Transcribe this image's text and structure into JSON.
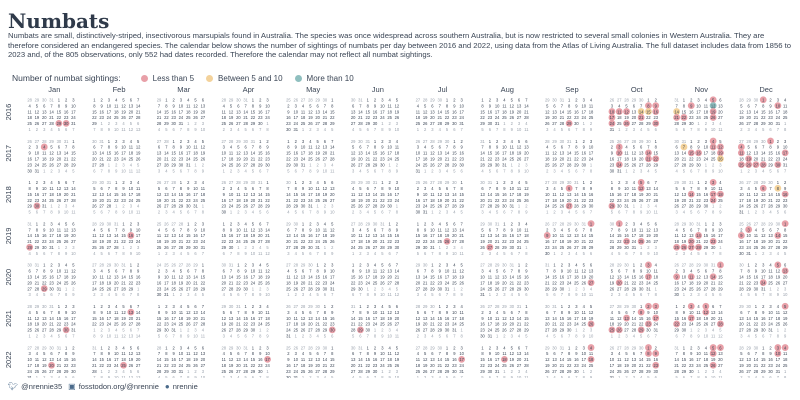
{
  "title": "Numbats",
  "description": "Numbats are small, distinctively-striped, insectivorous marsupials found in Australia. The species was once widespread across southern Australia, but is now restricted to several small colonies in Western Australia. They are therefore considered an endangered species. The calendar below shows the number of sightings of numbats per day between 2016 and 2022, using data from the Atlas of Living Australia. The full dataset includes data from 1856 to 2023 and, of the 805 observations, only 552 had dates recorded. Therefore the calendar may not reflect all numbat sightings.",
  "legend": {
    "title": "Number of numbat sightings:",
    "items": [
      {
        "label": "Less than 5",
        "color": "#e8a0a8"
      },
      {
        "label": "Between 5 and 10",
        "color": "#f3d29b"
      },
      {
        "label": "More than 10",
        "color": "#8fbfbf"
      }
    ]
  },
  "footer": {
    "twitter_icon": "twitter-icon",
    "twitter": "@nrennie35",
    "mastodon_icon": "mastodon-icon",
    "mastodon": "fosstodon.org/@nrennie",
    "github_icon": "github-icon",
    "github": "nrennie"
  },
  "chart_data": {
    "type": "heatmap",
    "years": [
      "2016",
      "2017",
      "2018",
      "2019",
      "2020",
      "2021",
      "2022"
    ],
    "months": [
      "Jan",
      "Feb",
      "Mar",
      "Apr",
      "May",
      "Jun",
      "Jul",
      "Aug",
      "Sep",
      "Oct",
      "Nov",
      "Dec"
    ],
    "categories": [
      "Less than 5",
      "Between 5 and 10",
      "More than 10"
    ],
    "colors": {
      "low": "#e8a0a8",
      "mid": "#f3d29b",
      "high": "#8fbfbf"
    },
    "highlighted_days": [
      {
        "date": "2016-01-29",
        "level": "low"
      },
      {
        "date": "2016-01-30",
        "level": "low"
      },
      {
        "date": "2016-09-29",
        "level": "low"
      },
      {
        "date": "2016-10-08",
        "level": "low"
      },
      {
        "date": "2016-10-09",
        "level": "low"
      },
      {
        "date": "2016-10-10",
        "level": "low"
      },
      {
        "date": "2016-10-11",
        "level": "low"
      },
      {
        "date": "2016-10-12",
        "level": "low"
      },
      {
        "date": "2016-10-14",
        "level": "mid"
      },
      {
        "date": "2016-10-15",
        "level": "mid"
      },
      {
        "date": "2016-10-16",
        "level": "low"
      },
      {
        "date": "2016-10-17",
        "level": "low"
      },
      {
        "date": "2016-10-21",
        "level": "low"
      },
      {
        "date": "2016-10-24",
        "level": "low"
      },
      {
        "date": "2016-10-26",
        "level": "low"
      },
      {
        "date": "2016-10-30",
        "level": "low"
      },
      {
        "date": "2016-11-05",
        "level": "low"
      },
      {
        "date": "2016-11-09",
        "level": "low"
      },
      {
        "date": "2016-11-12",
        "level": "high"
      },
      {
        "date": "2016-11-14",
        "level": "mid"
      },
      {
        "date": "2016-11-19",
        "level": "low"
      },
      {
        "date": "2016-11-21",
        "level": "low"
      },
      {
        "date": "2016-11-22",
        "level": "low"
      },
      {
        "date": "2016-11-26",
        "level": "low"
      },
      {
        "date": "2016-12-01",
        "level": "low"
      },
      {
        "date": "2016-12-10",
        "level": "low"
      },
      {
        "date": "2017-01-04",
        "level": "low"
      },
      {
        "date": "2017-10-03",
        "level": "low"
      },
      {
        "date": "2017-10-10",
        "level": "low"
      },
      {
        "date": "2017-10-14",
        "level": "low"
      },
      {
        "date": "2017-10-21",
        "level": "low"
      },
      {
        "date": "2017-10-22",
        "level": "low"
      },
      {
        "date": "2017-10-24",
        "level": "low"
      },
      {
        "date": "2017-11-04",
        "level": "low"
      },
      {
        "date": "2017-11-07",
        "level": "mid"
      },
      {
        "date": "2017-11-11",
        "level": "low"
      },
      {
        "date": "2017-11-12",
        "level": "low"
      },
      {
        "date": "2017-11-15",
        "level": "low"
      },
      {
        "date": "2017-11-16",
        "level": "low"
      },
      {
        "date": "2017-11-19",
        "level": "low"
      },
      {
        "date": "2017-11-26",
        "level": "mid"
      },
      {
        "date": "2017-12-01",
        "level": "low"
      },
      {
        "date": "2017-12-04",
        "level": "low"
      },
      {
        "date": "2017-12-11",
        "level": "low"
      },
      {
        "date": "2017-12-17",
        "level": "low"
      },
      {
        "date": "2017-12-19",
        "level": "low"
      },
      {
        "date": "2017-12-25",
        "level": "low"
      },
      {
        "date": "2017-12-26",
        "level": "low"
      },
      {
        "date": "2017-12-27",
        "level": "low"
      },
      {
        "date": "2017-12-28",
        "level": "low"
      },
      {
        "date": "2017-12-30",
        "level": "low"
      },
      {
        "date": "2018-01-30",
        "level": "low"
      },
      {
        "date": "2018-09-06",
        "level": "low"
      },
      {
        "date": "2018-09-27",
        "level": "low"
      },
      {
        "date": "2018-10-05",
        "level": "low"
      },
      {
        "date": "2018-10-12",
        "level": "low"
      },
      {
        "date": "2018-10-29",
        "level": "low"
      },
      {
        "date": "2018-11-03",
        "level": "low"
      },
      {
        "date": "2018-11-14",
        "level": "low"
      },
      {
        "date": "2018-11-17",
        "level": "low"
      },
      {
        "date": "2018-11-18",
        "level": "low"
      },
      {
        "date": "2018-11-24",
        "level": "low"
      },
      {
        "date": "2018-12-06",
        "level": "low"
      },
      {
        "date": "2018-12-08",
        "level": "mid"
      },
      {
        "date": "2018-12-16",
        "level": "low"
      },
      {
        "date": "2019-01-28",
        "level": "low"
      },
      {
        "date": "2019-02-16",
        "level": "low"
      },
      {
        "date": "2019-07-26",
        "level": "low"
      },
      {
        "date": "2019-08-27",
        "level": "low"
      },
      {
        "date": "2019-09-01",
        "level": "low"
      },
      {
        "date": "2019-09-09",
        "level": "low"
      },
      {
        "date": "2019-10-01",
        "level": "low"
      },
      {
        "date": "2019-10-23",
        "level": "low"
      },
      {
        "date": "2019-10-25",
        "level": "low"
      },
      {
        "date": "2019-11-14",
        "level": "low"
      },
      {
        "date": "2019-11-20",
        "level": "low"
      },
      {
        "date": "2019-11-23",
        "level": "low"
      },
      {
        "date": "2019-11-25",
        "level": "low"
      },
      {
        "date": "2019-11-26",
        "level": "low"
      },
      {
        "date": "2019-11-27",
        "level": "low"
      },
      {
        "date": "2019-11-28",
        "level": "low"
      },
      {
        "date": "2019-12-01",
        "level": "low"
      },
      {
        "date": "2019-12-03",
        "level": "low"
      },
      {
        "date": "2019-12-09",
        "level": "low"
      },
      {
        "date": "2019-12-14",
        "level": "low"
      },
      {
        "date": "2020-01-29",
        "level": "low"
      },
      {
        "date": "2020-09-27",
        "level": "low"
      },
      {
        "date": "2020-10-03",
        "level": "low"
      },
      {
        "date": "2020-10-17",
        "level": "low"
      },
      {
        "date": "2020-10-20",
        "level": "low"
      },
      {
        "date": "2020-11-01",
        "level": "low"
      },
      {
        "date": "2020-11-09",
        "level": "low"
      },
      {
        "date": "2020-11-11",
        "level": "low"
      },
      {
        "date": "2020-11-14",
        "level": "low"
      },
      {
        "date": "2020-12-05",
        "level": "low"
      },
      {
        "date": "2020-12-13",
        "level": "low"
      },
      {
        "date": "2020-12-24",
        "level": "low"
      },
      {
        "date": "2021-01-30",
        "level": "low"
      },
      {
        "date": "2021-02-13",
        "level": "low"
      },
      {
        "date": "2021-05-30",
        "level": "low"
      },
      {
        "date": "2021-06-29",
        "level": "low"
      },
      {
        "date": "2021-09-26",
        "level": "low"
      },
      {
        "date": "2021-10-02",
        "level": "low"
      },
      {
        "date": "2021-10-03",
        "level": "low"
      },
      {
        "date": "2021-10-08",
        "level": "low"
      },
      {
        "date": "2021-10-13",
        "level": "low"
      },
      {
        "date": "2021-10-17",
        "level": "low"
      },
      {
        "date": "2021-10-23",
        "level": "low"
      },
      {
        "date": "2021-10-25",
        "level": "low"
      },
      {
        "date": "2021-10-26",
        "level": "low"
      },
      {
        "date": "2021-10-29",
        "level": "low"
      },
      {
        "date": "2021-11-03",
        "level": "low"
      },
      {
        "date": "2021-11-05",
        "level": "low"
      },
      {
        "date": "2021-11-12",
        "level": "low"
      },
      {
        "date": "2021-11-17",
        "level": "low"
      },
      {
        "date": "2021-11-22",
        "level": "low"
      },
      {
        "date": "2021-11-28",
        "level": "low"
      },
      {
        "date": "2021-12-05",
        "level": "low"
      },
      {
        "date": "2022-01-20",
        "level": "low"
      },
      {
        "date": "2022-02-25",
        "level": "low"
      },
      {
        "date": "2022-04-17",
        "level": "low"
      },
      {
        "date": "2022-07-17",
        "level": "low"
      },
      {
        "date": "2022-08-18",
        "level": "low"
      },
      {
        "date": "2022-09-04",
        "level": "low"
      },
      {
        "date": "2022-09-18",
        "level": "low"
      },
      {
        "date": "2022-10-01",
        "level": "low"
      },
      {
        "date": "2022-10-08",
        "level": "low"
      },
      {
        "date": "2022-10-09",
        "level": "low"
      },
      {
        "date": "2022-10-23",
        "level": "low"
      },
      {
        "date": "2022-11-05",
        "level": "low"
      },
      {
        "date": "2022-11-06",
        "level": "low"
      },
      {
        "date": "2022-11-12",
        "level": "low"
      },
      {
        "date": "2022-11-26",
        "level": "low"
      },
      {
        "date": "2022-12-03",
        "level": "low"
      },
      {
        "date": "2022-12-04",
        "level": "low"
      },
      {
        "date": "2022-12-10",
        "level": "low"
      }
    ]
  }
}
